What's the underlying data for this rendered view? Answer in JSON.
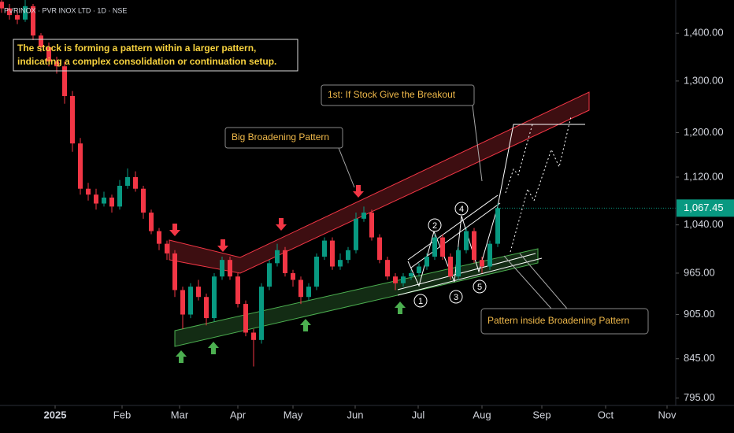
{
  "header": "PVRINOX · PVR INOX LTD · 1D · NSE",
  "chart_data": {
    "type": "candlestick",
    "log_scale": true,
    "grid": false,
    "up_color": "#089981",
    "down_color": "#f23645",
    "open": [
      1470,
      1455,
      1440,
      1430,
      1460,
      1395,
      1370,
      1340,
      1330,
      1270,
      1180,
      1100,
      1090,
      1075,
      1085,
      1070,
      1105,
      1120,
      1100,
      1060,
      1030,
      1010,
      995,
      940,
      905,
      945,
      930,
      900,
      960,
      985,
      960,
      920,
      880,
      870,
      945,
      980,
      1000,
      965,
      955,
      930,
      945,
      990,
      1015,
      975,
      985,
      1000,
      1050,
      1060,
      1020,
      985,
      960,
      950,
      960,
      965,
      975,
      990,
      1020,
      990,
      960,
      1000,
      1030,
      985,
      975,
      1010
    ],
    "high": [
      1480,
      1465,
      1450,
      1475,
      1465,
      1400,
      1380,
      1350,
      1340,
      1280,
      1190,
      1110,
      1100,
      1095,
      1090,
      1115,
      1135,
      1130,
      1105,
      1065,
      1035,
      1015,
      1000,
      945,
      950,
      955,
      935,
      965,
      990,
      990,
      965,
      925,
      885,
      950,
      985,
      1010,
      1005,
      970,
      960,
      950,
      995,
      1020,
      1020,
      995,
      1005,
      1060,
      1070,
      1065,
      1025,
      990,
      965,
      965,
      970,
      980,
      995,
      1025,
      1025,
      995,
      1005,
      1035,
      1035,
      990,
      1015,
      1075
    ],
    "low": [
      1445,
      1430,
      1420,
      1425,
      1385,
      1360,
      1330,
      1315,
      1255,
      1165,
      1090,
      1080,
      1065,
      1070,
      1060,
      1065,
      1100,
      1095,
      1050,
      1025,
      1000,
      985,
      930,
      885,
      900,
      925,
      890,
      895,
      955,
      955,
      915,
      875,
      835,
      865,
      940,
      975,
      960,
      945,
      920,
      925,
      940,
      985,
      970,
      970,
      980,
      995,
      1045,
      1015,
      980,
      955,
      940,
      945,
      955,
      960,
      970,
      985,
      985,
      955,
      955,
      995,
      980,
      965,
      970,
      1005
    ],
    "close": [
      1455,
      1440,
      1430,
      1460,
      1395,
      1370,
      1340,
      1330,
      1270,
      1180,
      1100,
      1090,
      1075,
      1085,
      1070,
      1105,
      1120,
      1100,
      1060,
      1030,
      1010,
      995,
      940,
      905,
      945,
      930,
      900,
      960,
      985,
      960,
      920,
      880,
      870,
      945,
      980,
      1000,
      965,
      955,
      930,
      945,
      990,
      1015,
      975,
      985,
      1000,
      1050,
      1060,
      1020,
      985,
      960,
      950,
      960,
      965,
      975,
      990,
      1020,
      990,
      960,
      1000,
      1030,
      985,
      975,
      1010,
      1067.45
    ],
    "last_price_label": "1,067.45",
    "xlim": [
      -0.2,
      85.6
    ],
    "xticks": [
      {
        "value": 6.8,
        "label": "2025"
      },
      {
        "value": 15.3,
        "label": "Feb"
      },
      {
        "value": 22.6,
        "label": "Mar"
      },
      {
        "value": 30,
        "label": "Apr"
      },
      {
        "value": 37,
        "label": "May"
      },
      {
        "value": 44.9,
        "label": "Jun"
      },
      {
        "value": 52.9,
        "label": "Jul"
      },
      {
        "value": 61,
        "label": "Aug"
      },
      {
        "value": 68.6,
        "label": "Sep"
      },
      {
        "value": 76.7,
        "label": "Oct"
      },
      {
        "value": 84.5,
        "label": "Nov"
      }
    ],
    "ylim": [
      786,
      1474
    ],
    "yticks": [
      {
        "value": 1400,
        "label": "1,400.00"
      },
      {
        "value": 1300,
        "label": "1,300.00"
      },
      {
        "value": 1200,
        "label": "1,200.00"
      },
      {
        "value": 1120,
        "label": "1,120.00"
      },
      {
        "value": 1040,
        "label": "1,040.00"
      },
      {
        "value": 965,
        "label": "965.00"
      },
      {
        "value": 905,
        "label": "905.00"
      },
      {
        "value": 845,
        "label": "845.00"
      },
      {
        "value": 795,
        "label": "795.00"
      }
    ],
    "annotations": {
      "note_line1": "The stock is forming a pattern within a larger pattern,",
      "note_line2": "indicating a complex consolidation or continuation setup.",
      "breakout": "1st: If Stock Give the Breakout",
      "big_pattern": "Big Broadening Pattern",
      "inner_pattern": "Pattern inside Broadening Pattern",
      "waves": [
        "1",
        "2",
        "3",
        "4",
        "5"
      ]
    }
  }
}
